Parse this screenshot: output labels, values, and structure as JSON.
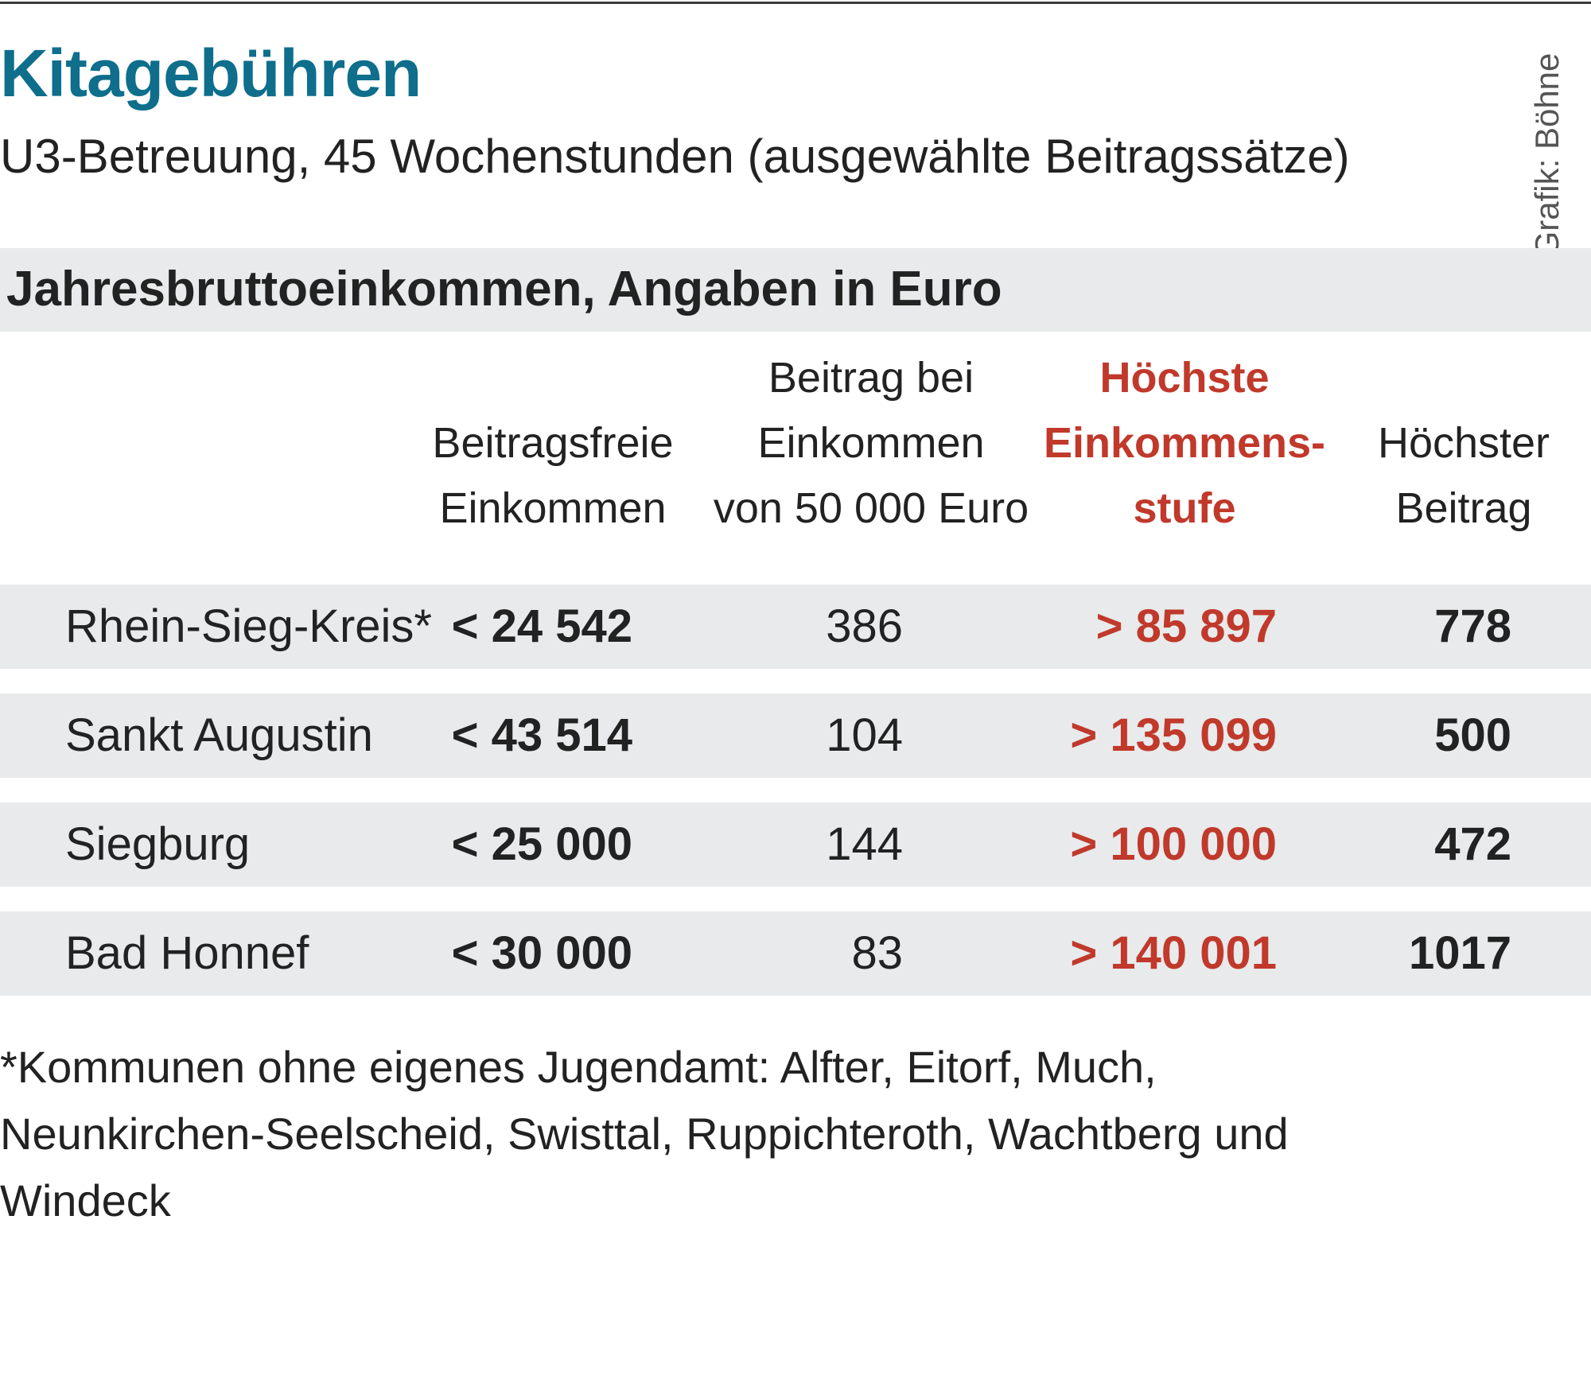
{
  "chart_data": {
    "type": "table",
    "title": "Kitagebühren",
    "subtitle": "U3-Betreuung, 45 Wochenstunden (ausgewählte Beitragssätze)",
    "credit": "Grafik: Böhne",
    "section": "Jahresbruttoeinkommen, Angaben in Euro",
    "columns": [
      {
        "lines": [
          "Beitragsfreie",
          "Einkommen"
        ]
      },
      {
        "lines": [
          "Beitrag bei",
          "Einkommen",
          "von 50 000 Euro"
        ]
      },
      {
        "lines": [
          "Höchste",
          "Einkommens-",
          "stufe"
        ]
      },
      {
        "lines": [
          "Höchster",
          "Beitrag"
        ]
      }
    ],
    "rows": [
      {
        "name": "Rhein-Sieg-Kreis*",
        "free": "< 24 542",
        "fee": "386",
        "top": "> 85 897",
        "max": "778"
      },
      {
        "name": "Sankt Augustin",
        "free": "< 43 514",
        "fee": "104",
        "top": "> 135 099",
        "max": "500"
      },
      {
        "name": "Siegburg",
        "free": "< 25 000",
        "fee": "144",
        "top": "> 100 000",
        "max": "472"
      },
      {
        "name": "Bad Honnef",
        "free": "< 30 000",
        "fee": "83",
        "top": "> 140 001",
        "max": "1017"
      }
    ],
    "footnote": "*Kommunen ohne eigenes Jugendamt: Alfter, Eitorf, Much, Neunkirchen-Seelscheid, Swisttal, Ruppichteroth, Wachtberg und Windeck",
    "colors": {
      "title": "#0e6e8c",
      "accent": "#c0392b",
      "band": "#e8eaeb"
    }
  }
}
